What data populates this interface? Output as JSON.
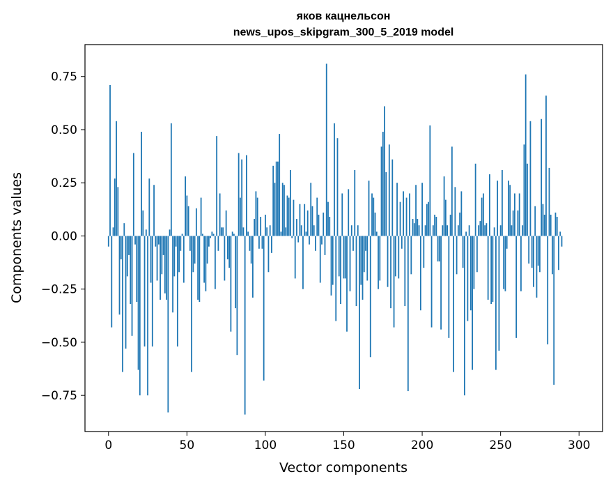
{
  "chart_data": {
    "type": "bar",
    "title": "яков кацнельсон",
    "subtitle": "news_upos_skipgram_300_5_2019 model",
    "xlabel": "Vector components",
    "ylabel": "Components values",
    "bar_color": "#1f77b4",
    "xlim": [
      -15,
      315
    ],
    "ylim": [
      -0.92,
      0.9
    ],
    "xticks": [
      0,
      50,
      100,
      150,
      200,
      250,
      300
    ],
    "xtick_labels": [
      "0",
      "50",
      "100",
      "150",
      "200",
      "250",
      "300"
    ],
    "yticks": [
      0.75,
      0.5,
      0.25,
      0.0,
      -0.25,
      -0.5,
      -0.75
    ],
    "ytick_labels": [
      "0.75",
      "0.50",
      "0.25",
      "0.00",
      "−0.25",
      "−0.50",
      "−0.75"
    ],
    "x_start": 0,
    "values": [
      -0.05,
      0.71,
      -0.43,
      0.04,
      0.27,
      0.54,
      0.23,
      -0.37,
      -0.11,
      -0.64,
      0.06,
      -0.53,
      -0.19,
      -0.09,
      -0.32,
      -0.47,
      0.39,
      -0.04,
      -0.31,
      -0.63,
      -0.75,
      0.49,
      0.12,
      -0.52,
      0.03,
      -0.75,
      0.27,
      -0.22,
      -0.52,
      0.24,
      -0.05,
      -0.21,
      -0.04,
      -0.3,
      -0.18,
      -0.09,
      -0.27,
      -0.3,
      -0.83,
      0.03,
      0.53,
      -0.36,
      -0.19,
      -0.05,
      -0.52,
      -0.17,
      -0.07,
      0.01,
      -0.22,
      0.28,
      0.19,
      0.14,
      -0.07,
      -0.64,
      -0.17,
      -0.13,
      0.13,
      -0.3,
      -0.31,
      0.18,
      0.01,
      -0.22,
      -0.26,
      -0.13,
      -0.05,
      -0.01,
      0.02,
      0.01,
      -0.25,
      0.47,
      -0.07,
      0.2,
      0.04,
      0.04,
      -0.21,
      0.12,
      -0.11,
      -0.15,
      -0.45,
      0.02,
      0.01,
      -0.34,
      -0.56,
      0.39,
      0.18,
      0.36,
      0.04,
      -0.84,
      0.38,
      0.02,
      -0.07,
      -0.13,
      -0.29,
      0.08,
      0.21,
      0.18,
      -0.06,
      0.09,
      -0.06,
      -0.68,
      0.1,
      0.04,
      -0.17,
      0.05,
      -0.08,
      0.33,
      0.25,
      0.35,
      0.35,
      0.48,
      0.02,
      0.25,
      0.24,
      0.04,
      0.19,
      0.18,
      0.31,
      -0.01,
      0.17,
      -0.2,
      0.08,
      -0.03,
      0.15,
      0.05,
      -0.25,
      0.15,
      0.02,
      0.12,
      -0.04,
      0.25,
      0.14,
      0.05,
      -0.07,
      0.18,
      0.1,
      -0.22,
      -0.04,
      0.11,
      -0.09,
      0.81,
      0.16,
      0.09,
      -0.28,
      -0.23,
      0.53,
      -0.4,
      0.46,
      -0.19,
      -0.32,
      0.2,
      -0.2,
      -0.2,
      -0.45,
      0.22,
      -0.26,
      0.05,
      -0.07,
      0.31,
      -0.33,
      0.05,
      -0.72,
      -0.23,
      -0.3,
      -0.17,
      -0.07,
      -0.21,
      0.26,
      -0.57,
      0.2,
      0.18,
      0.11,
      0.02,
      -0.25,
      -0.21,
      0.42,
      0.49,
      0.61,
      0.3,
      -0.24,
      0.43,
      -0.34,
      0.36,
      -0.43,
      -0.19,
      0.25,
      -0.2,
      0.16,
      -0.06,
      0.21,
      -0.33,
      0.18,
      -0.73,
      0.2,
      -0.18,
      0.08,
      0.06,
      0.24,
      0.08,
      0.05,
      -0.35,
      0.25,
      -0.15,
      0.05,
      0.15,
      0.16,
      0.52,
      -0.43,
      0.05,
      0.1,
      0.09,
      -0.12,
      -0.12,
      -0.44,
      0.05,
      0.28,
      0.17,
      0.05,
      -0.48,
      0.1,
      0.42,
      -0.64,
      0.23,
      -0.18,
      0.05,
      0.11,
      0.21,
      -0.15,
      -0.75,
      0.02,
      -0.4,
      0.05,
      -0.35,
      -0.63,
      -0.25,
      0.34,
      -0.17,
      0.05,
      0.07,
      0.18,
      0.2,
      0.05,
      0.06,
      -0.3,
      0.29,
      -0.32,
      -0.31,
      0.04,
      -0.63,
      0.26,
      -0.54,
      0.05,
      0.31,
      -0.25,
      -0.26,
      -0.06,
      0.26,
      0.24,
      0.05,
      0.12,
      0.2,
      -0.48,
      0.12,
      0.2,
      -0.26,
      0.05,
      0.43,
      0.76,
      0.34,
      -0.13,
      0.54,
      -0.15,
      -0.24,
      0.14,
      -0.29,
      -0.14,
      -0.17,
      0.55,
      0.15,
      0.1,
      0.66,
      -0.51,
      0.32,
      0.1,
      -0.18,
      -0.7,
      0.11,
      0.09,
      -0.16,
      0.02,
      -0.05
    ]
  }
}
